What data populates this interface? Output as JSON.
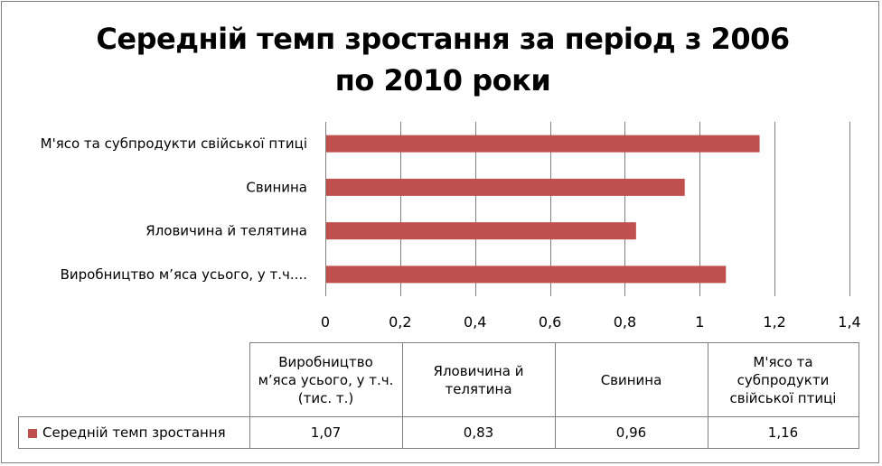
{
  "colors": {
    "bar": "#c0504d",
    "grid": "#7f7f7f",
    "border": "#7f7f7f"
  },
  "chart_data": {
    "type": "bar",
    "orientation": "horizontal",
    "title": "Середній темп зростання за період з 2006 по 2010 роки",
    "categories": [
      "Виробництво м’яса усього, у т.ч. (тис. т.)",
      "Яловичина й телятина",
      "Свинина",
      "М'ясо та субпродукти свійської птиці"
    ],
    "axis_category_labels": [
      "Виробництво м’яса усього, у т.ч....",
      "Яловичина й телятина",
      "Свинина",
      "М'ясо та субпродукти свійської птиці"
    ],
    "series": [
      {
        "name": "Середній темп зростання",
        "values": [
          1.07,
          0.83,
          0.96,
          1.16
        ]
      }
    ],
    "value_labels": [
      "1,07",
      "0,83",
      "0,96",
      "1,16"
    ],
    "xlim": [
      0,
      1.4
    ],
    "ticks": [
      0,
      0.2,
      0.4,
      0.6,
      0.8,
      1,
      1.2,
      1.4
    ],
    "tick_labels": [
      "0",
      "0,2",
      "0,4",
      "0,6",
      "0,8",
      "1",
      "1,2",
      "1,4"
    ],
    "grid": true,
    "legend": "data-table-left"
  },
  "table": {
    "header_lines": [
      [
        "Виробництво",
        "м’яса усього, у т.ч.",
        "(тис. т.)"
      ],
      [
        "Яловичина й",
        "телятина"
      ],
      [
        "Свинина"
      ],
      [
        "М'ясо та",
        "субпродукти",
        "свійської птиці"
      ]
    ]
  }
}
